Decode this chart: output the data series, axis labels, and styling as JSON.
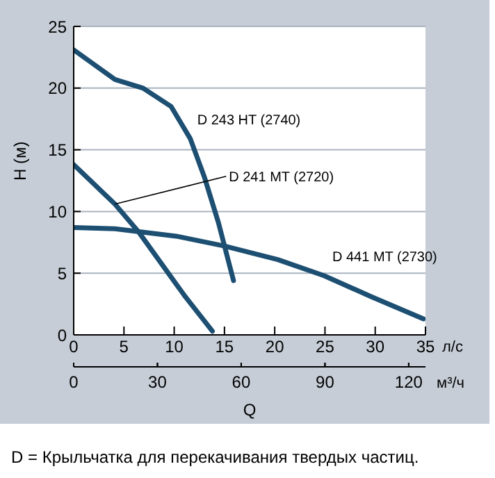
{
  "chart_data": {
    "type": "line",
    "ylabel": "H (м)",
    "xlabel": "Q",
    "xlim": [
      0,
      35
    ],
    "xticks": [
      0,
      5,
      10,
      15,
      20,
      25,
      30,
      35
    ],
    "x2lim": [
      0,
      126
    ],
    "x2ticks": [
      0,
      30,
      60,
      90,
      120
    ],
    "ylim": [
      0,
      25
    ],
    "yticks": [
      0,
      5,
      10,
      15,
      20,
      25
    ],
    "grid": "y",
    "legend": false,
    "marker": "none",
    "line_style": "solid",
    "series": [
      {
        "name": "D 243 HT (2740)",
        "color": "#1d4f73",
        "x": [
          0,
          4.1,
          6.9,
          9.7,
          11.6,
          13,
          14.4,
          15.9
        ],
        "values": [
          23.1,
          20.7,
          20,
          18.5,
          15.9,
          12.8,
          9.1,
          4.4
        ]
      },
      {
        "name": "D 241 MT (2720)",
        "color": "#1d4f73",
        "x": [
          0,
          4.1,
          6.5,
          11.1,
          13.8
        ],
        "values": [
          13.8,
          10.6,
          8.3,
          3.1,
          0.3
        ]
      },
      {
        "name": "D 441 MT (2730)",
        "color": "#1d4f73",
        "x": [
          0,
          4.1,
          10.2,
          15,
          20.3,
          24.9,
          29.6,
          34.8
        ],
        "values": [
          8.7,
          8.6,
          8,
          7.2,
          6.1,
          4.8,
          3.1,
          1.3
        ]
      }
    ],
    "annotations": [
      "л/с",
      "м³/ч",
      "D = Крыльчатка для перекачивания твердых частиц."
    ]
  }
}
